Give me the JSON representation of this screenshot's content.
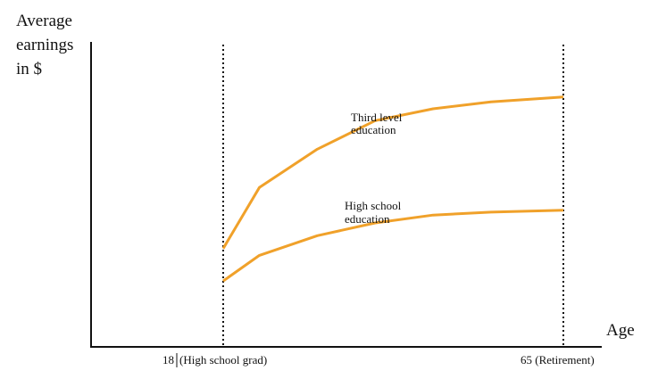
{
  "chart_data": {
    "type": "line",
    "title": "",
    "xlabel": "Age",
    "ylabel_lines": [
      "Average",
      "earnings",
      "in $"
    ],
    "x_ticks": [
      {
        "value": 18,
        "label": "18",
        "annotation": "(High school grad)"
      },
      {
        "value": 65,
        "label": "65 (Retirement)"
      }
    ],
    "x": [
      18,
      23,
      31,
      39,
      47,
      55,
      65
    ],
    "series": [
      {
        "name_lines": [
          "Third level",
          "education"
        ],
        "color": "#f0a12a",
        "values": [
          100,
          162,
          201,
          230,
          242,
          249,
          254
        ]
      },
      {
        "name_lines": [
          "High school",
          "education"
        ],
        "color": "#f0a12a",
        "values": [
          67,
          93,
          113,
          126,
          134,
          137,
          139
        ]
      }
    ],
    "xlim": [
      0,
      70
    ],
    "ylim": [
      0,
      310
    ],
    "reference_lines_x": [
      18,
      65
    ],
    "grid": false,
    "legend": "inline labels"
  }
}
